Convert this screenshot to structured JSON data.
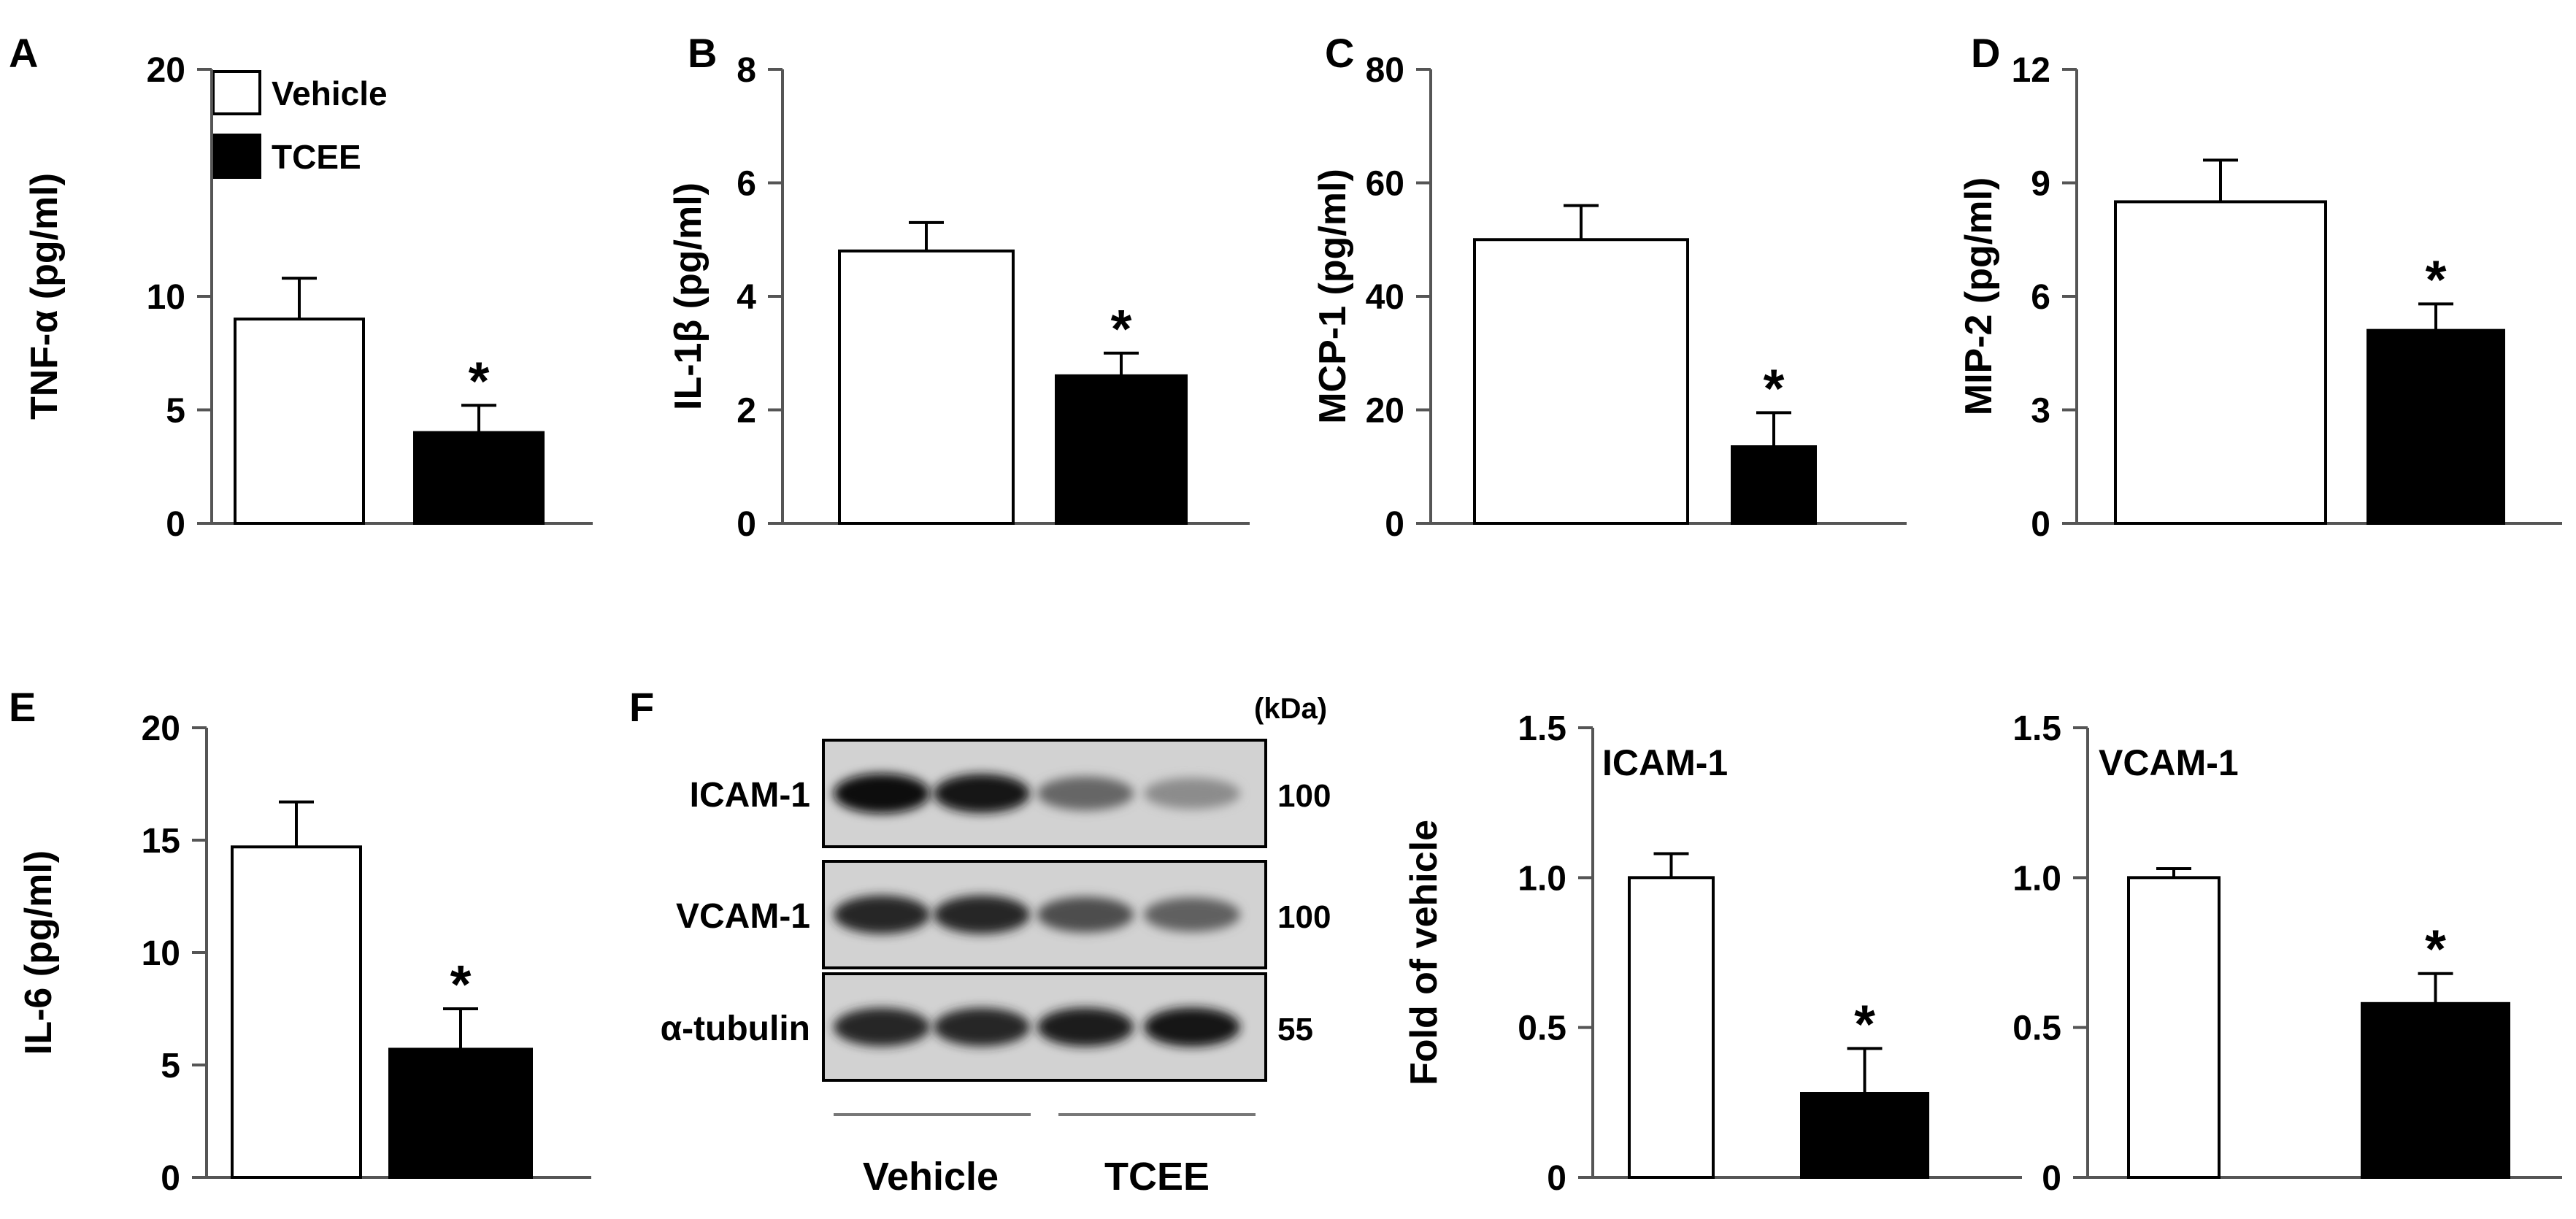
{
  "legend": {
    "vehicle": "Vehicle",
    "tcee": "TCEE"
  },
  "significance_marker": "*",
  "colors": {
    "vehicle_fill": "#ffffff",
    "tcee_fill": "#000000",
    "stroke": "#000000",
    "axis": "#555555"
  },
  "chart_data": [
    {
      "panel": "A",
      "type": "bar",
      "ylabel": "TNF-α (pg/ml)",
      "ylim": [
        0,
        20
      ],
      "yticks": [
        "0",
        "5",
        "10",
        "20"
      ],
      "ytick_values": [
        0,
        5,
        10,
        20
      ],
      "categories": [
        "Vehicle",
        "TCEE"
      ],
      "values": [
        9.0,
        4.0
      ],
      "errors": [
        1.8,
        1.2
      ],
      "significant": [
        false,
        true
      ],
      "inset_label": ""
    },
    {
      "panel": "B",
      "type": "bar",
      "ylabel": "IL-1β (pg/ml)",
      "ylim": [
        0,
        8
      ],
      "yticks": [
        "0",
        "2",
        "4",
        "6",
        "8"
      ],
      "ytick_values": [
        0,
        2,
        4,
        6,
        8
      ],
      "categories": [
        "Vehicle",
        "TCEE"
      ],
      "values": [
        4.8,
        2.6
      ],
      "errors": [
        0.5,
        0.4
      ],
      "significant": [
        false,
        true
      ],
      "inset_label": ""
    },
    {
      "panel": "C",
      "type": "bar",
      "ylabel": "MCP-1 (pg/ml)",
      "ylim": [
        0,
        80
      ],
      "yticks": [
        "0",
        "20",
        "40",
        "60",
        "80"
      ],
      "ytick_values": [
        0,
        20,
        40,
        60,
        80
      ],
      "categories": [
        "Vehicle",
        "TCEE"
      ],
      "values": [
        50,
        13.5
      ],
      "errors": [
        6,
        6
      ],
      "significant": [
        false,
        true
      ],
      "inset_label": ""
    },
    {
      "panel": "D",
      "type": "bar",
      "ylabel": "MIP-2 (pg/ml)",
      "ylim": [
        0,
        12
      ],
      "yticks": [
        "0",
        "3",
        "6",
        "9",
        "12"
      ],
      "ytick_values": [
        0,
        3,
        6,
        9,
        12
      ],
      "categories": [
        "Vehicle",
        "TCEE"
      ],
      "values": [
        8.5,
        5.1
      ],
      "errors": [
        1.1,
        0.7
      ],
      "significant": [
        false,
        true
      ],
      "inset_label": ""
    },
    {
      "panel": "E",
      "type": "bar",
      "ylabel": "IL-6 (pg/ml)",
      "ylim": [
        0,
        20
      ],
      "yticks": [
        "0",
        "5",
        "10",
        "15",
        "20"
      ],
      "ytick_values": [
        0,
        5,
        10,
        15,
        20
      ],
      "categories": [
        "Vehicle",
        "TCEE"
      ],
      "values": [
        14.7,
        5.7
      ],
      "errors": [
        2.0,
        1.8
      ],
      "significant": [
        false,
        true
      ],
      "inset_label": ""
    },
    {
      "panel": "F-ICAM",
      "type": "bar",
      "ylabel": "Fold of vehicle",
      "ylim": [
        0,
        1.5
      ],
      "yticks": [
        "0",
        "0.5",
        "1.0",
        "1.5"
      ],
      "ytick_values": [
        0,
        0.5,
        1.0,
        1.5
      ],
      "categories": [
        "Vehicle",
        "TCEE"
      ],
      "values": [
        1.0,
        0.28
      ],
      "errors": [
        0.08,
        0.15
      ],
      "significant": [
        false,
        true
      ],
      "inset_label": "ICAM-1"
    },
    {
      "panel": "F-VCAM",
      "type": "bar",
      "ylabel": "",
      "ylim": [
        0,
        1.5
      ],
      "yticks": [
        "0",
        "0.5",
        "1.0",
        "1.5"
      ],
      "ytick_values": [
        0,
        0.5,
        1.0,
        1.5
      ],
      "categories": [
        "Vehicle",
        "TCEE"
      ],
      "values": [
        1.0,
        0.58
      ],
      "errors": [
        0.03,
        0.1
      ],
      "significant": [
        false,
        true
      ],
      "inset_label": "VCAM-1"
    }
  ],
  "blot": {
    "panel": "F",
    "unit_label": "(kDa)",
    "rows": [
      {
        "label": "ICAM-1",
        "size": "100",
        "band_intensity": [
          0.95,
          0.9,
          0.6,
          0.45
        ]
      },
      {
        "label": "VCAM-1",
        "size": "100",
        "band_intensity": [
          0.85,
          0.85,
          0.7,
          0.62
        ]
      },
      {
        "label": "α-tubulin",
        "size": "55",
        "band_intensity": [
          0.85,
          0.85,
          0.88,
          0.9
        ]
      }
    ],
    "group_labels": [
      "Vehicle",
      "TCEE"
    ]
  }
}
